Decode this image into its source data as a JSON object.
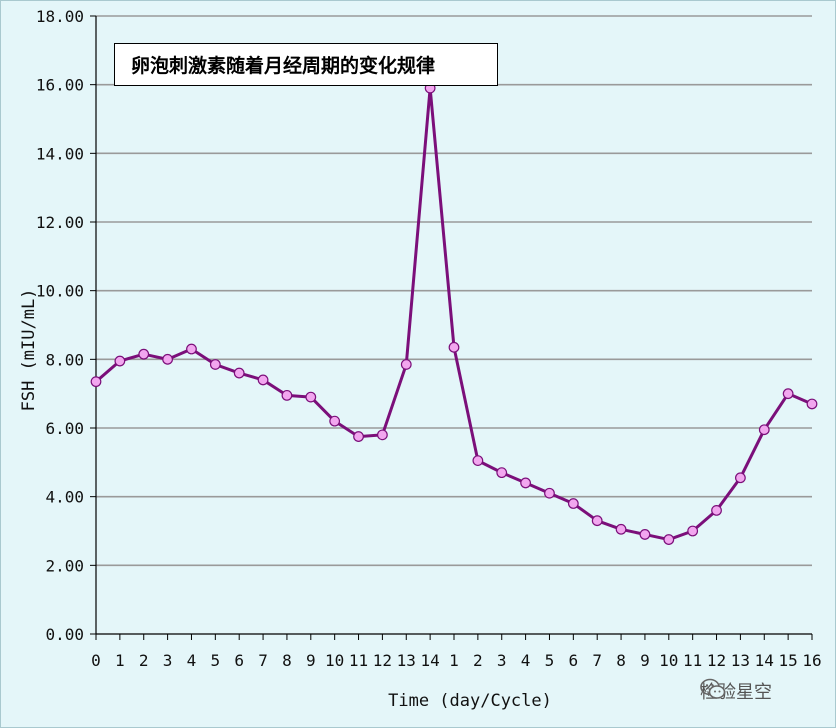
{
  "chart_data": {
    "type": "line",
    "title": "卵泡刺激素随着月经周期的变化规律",
    "xlabel": "Time (day/Cycle)",
    "ylabel": "FSH (mIU/mL)",
    "ylim": [
      0,
      18
    ],
    "yticks": [
      "0.00",
      "2.00",
      "4.00",
      "6.00",
      "8.00",
      "10.00",
      "12.00",
      "14.00",
      "16.00",
      "18.00"
    ],
    "categories": [
      "0",
      "1",
      "2",
      "3",
      "4",
      "5",
      "6",
      "7",
      "8",
      "9",
      "10",
      "11",
      "12",
      "13",
      "14",
      "1",
      "2",
      "3",
      "4",
      "5",
      "6",
      "7",
      "8",
      "9",
      "10",
      "11",
      "12",
      "13",
      "14",
      "15",
      "16"
    ],
    "series": [
      {
        "values": [
          7.35,
          7.95,
          8.15,
          8.0,
          8.3,
          7.85,
          7.6,
          7.4,
          6.95,
          6.9,
          6.2,
          5.75,
          5.8,
          7.85,
          15.9,
          8.35,
          5.05,
          4.7,
          4.4,
          4.1,
          3.8,
          3.3,
          3.05,
          2.9,
          2.75,
          3.0,
          3.6,
          4.55,
          5.95,
          7.0,
          6.7
        ],
        "color": "#7b0f7a",
        "marker_color": "#f2a6ef"
      }
    ],
    "grid": true,
    "legend": "none"
  },
  "watermark": {
    "icon": "wechat-icon",
    "text": "检验星空"
  },
  "colors": {
    "background": "#e4f6f9",
    "grid": "#9a9a9a",
    "axis": "#000000"
  }
}
